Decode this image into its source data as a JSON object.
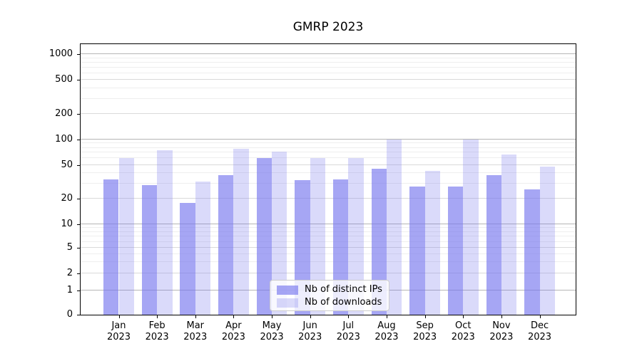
{
  "chart_data": {
    "type": "bar",
    "title": "GMRP 2023",
    "scale": "symlog",
    "categories": [
      "Jan 2023",
      "Feb 2023",
      "Mar 2023",
      "Apr 2023",
      "May 2023",
      "Jun 2023",
      "Jul 2023",
      "Aug 2023",
      "Sep 2023",
      "Oct 2023",
      "Nov 2023",
      "Dec 2023"
    ],
    "series": [
      {
        "name": "Nb of distinct IPs",
        "color": "#7777ee",
        "fill_alpha": 0.65,
        "values": [
          34,
          29,
          18,
          38,
          60,
          33,
          34,
          45,
          28,
          28,
          38,
          26
        ]
      },
      {
        "name": "Nb of downloads",
        "color": "#7777ee",
        "fill_alpha": 0.27,
        "values": [
          60,
          75,
          32,
          77,
          72,
          60,
          60,
          100,
          43,
          100,
          66,
          48
        ]
      }
    ],
    "y_ticks": [
      0,
      1,
      2,
      5,
      10,
      20,
      50,
      100,
      200,
      500,
      1000
    ],
    "ylim": [
      0,
      1300
    ],
    "grid": true,
    "legend": {
      "position": "lower center"
    },
    "background": "#ffffff"
  }
}
